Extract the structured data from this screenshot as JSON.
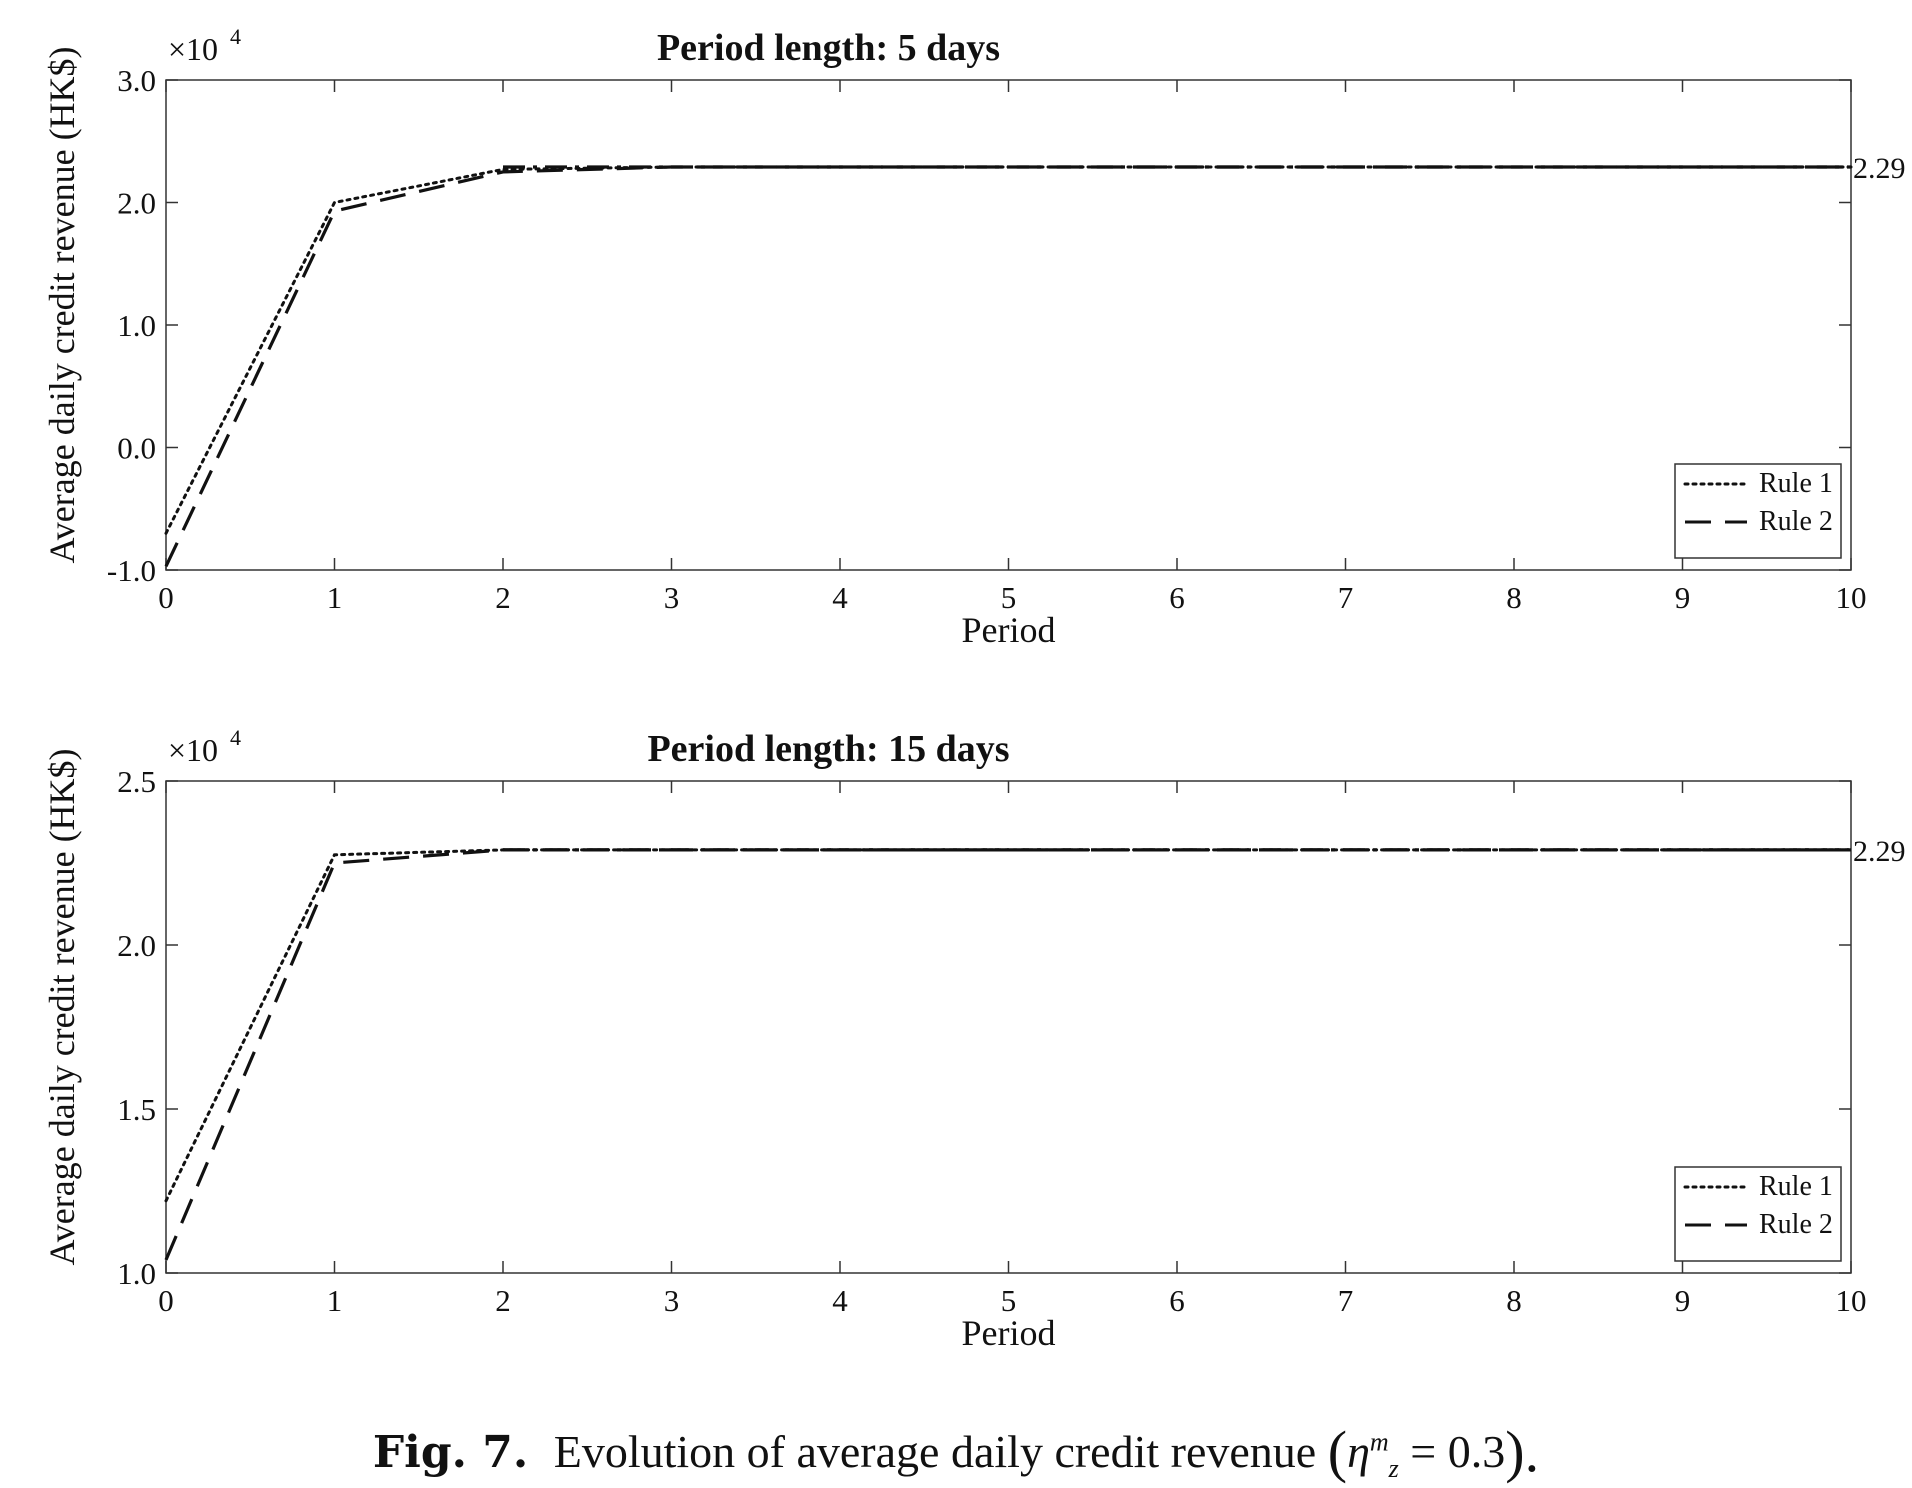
{
  "caption": {
    "label": "Fig. 7.",
    "text": "Evolution of average daily credit revenue",
    "eta": "η",
    "sup": "m",
    "sub": "z",
    "rest": " = 0.3",
    "open": "(",
    "close": ").",
    "tail": ""
  },
  "colors": {
    "line": "#111111",
    "axis": "#333333",
    "background": "#ffffff"
  },
  "chart_data": [
    {
      "type": "line",
      "title": "Period length: 5 days",
      "xlabel": "Period",
      "ylabel": "Average daily credit revenue (HK$)",
      "exponent": "×10",
      "exponent_power": "4",
      "xlim": [
        0,
        10
      ],
      "ylim": [
        -1.0,
        3.0
      ],
      "xticks": [
        "0",
        "1",
        "2",
        "3",
        "4",
        "5",
        "6",
        "7",
        "8",
        "9",
        "10"
      ],
      "yticks": [
        "-1.0",
        "0.0",
        "1.0",
        "2.0",
        "3.0"
      ],
      "ytick_values": [
        -1.0,
        0.0,
        1.0,
        2.0,
        3.0
      ],
      "annotation": "2.29",
      "annotation_y": 2.29,
      "legend_position": "bottom-right",
      "grid": false,
      "series": [
        {
          "name": "Rule 1",
          "style": "dotted",
          "x": [
            0,
            1,
            2,
            3,
            4,
            5,
            6,
            7,
            8,
            9,
            10
          ],
          "y": [
            -0.7,
            2.0,
            2.27,
            2.29,
            2.29,
            2.29,
            2.29,
            2.29,
            2.29,
            2.29,
            2.29
          ]
        },
        {
          "name": "Rule 2",
          "style": "dashed",
          "x": [
            0,
            1,
            2,
            3,
            4,
            5,
            6,
            7,
            8,
            9,
            10
          ],
          "y": [
            -0.97,
            1.93,
            2.25,
            2.29,
            2.29,
            2.29,
            2.29,
            2.29,
            2.29,
            2.29,
            2.29
          ]
        },
        {
          "name": "",
          "style": "dashdot",
          "x": [
            2,
            10
          ],
          "y": [
            2.29,
            2.29
          ]
        }
      ]
    },
    {
      "type": "line",
      "title": "Period length: 15 days",
      "xlabel": "Period",
      "ylabel": "Average daily credit revenue (HK$)",
      "exponent": "×10",
      "exponent_power": "4",
      "xlim": [
        0,
        10
      ],
      "ylim": [
        1.0,
        2.5
      ],
      "xticks": [
        "0",
        "1",
        "2",
        "3",
        "4",
        "5",
        "6",
        "7",
        "8",
        "9",
        "10"
      ],
      "yticks": [
        "1.0",
        "1.5",
        "2.0",
        "2.5"
      ],
      "ytick_values": [
        1.0,
        1.5,
        2.0,
        2.5
      ],
      "annotation": "2.29",
      "annotation_y": 2.29,
      "legend_position": "bottom-right",
      "grid": false,
      "series": [
        {
          "name": "Rule 1",
          "style": "dotted",
          "x": [
            0,
            1,
            2,
            3,
            4,
            5,
            6,
            7,
            8,
            9,
            10
          ],
          "y": [
            1.22,
            2.275,
            2.29,
            2.29,
            2.29,
            2.29,
            2.29,
            2.29,
            2.29,
            2.29,
            2.29
          ]
        },
        {
          "name": "Rule 2",
          "style": "dashed",
          "x": [
            0,
            1,
            2,
            3,
            4,
            5,
            6,
            7,
            8,
            9,
            10
          ],
          "y": [
            1.04,
            2.25,
            2.29,
            2.29,
            2.29,
            2.29,
            2.29,
            2.29,
            2.29,
            2.29,
            2.29
          ]
        },
        {
          "name": "",
          "style": "dashdot",
          "x": [
            2,
            10
          ],
          "y": [
            2.29,
            2.29
          ]
        }
      ]
    }
  ]
}
